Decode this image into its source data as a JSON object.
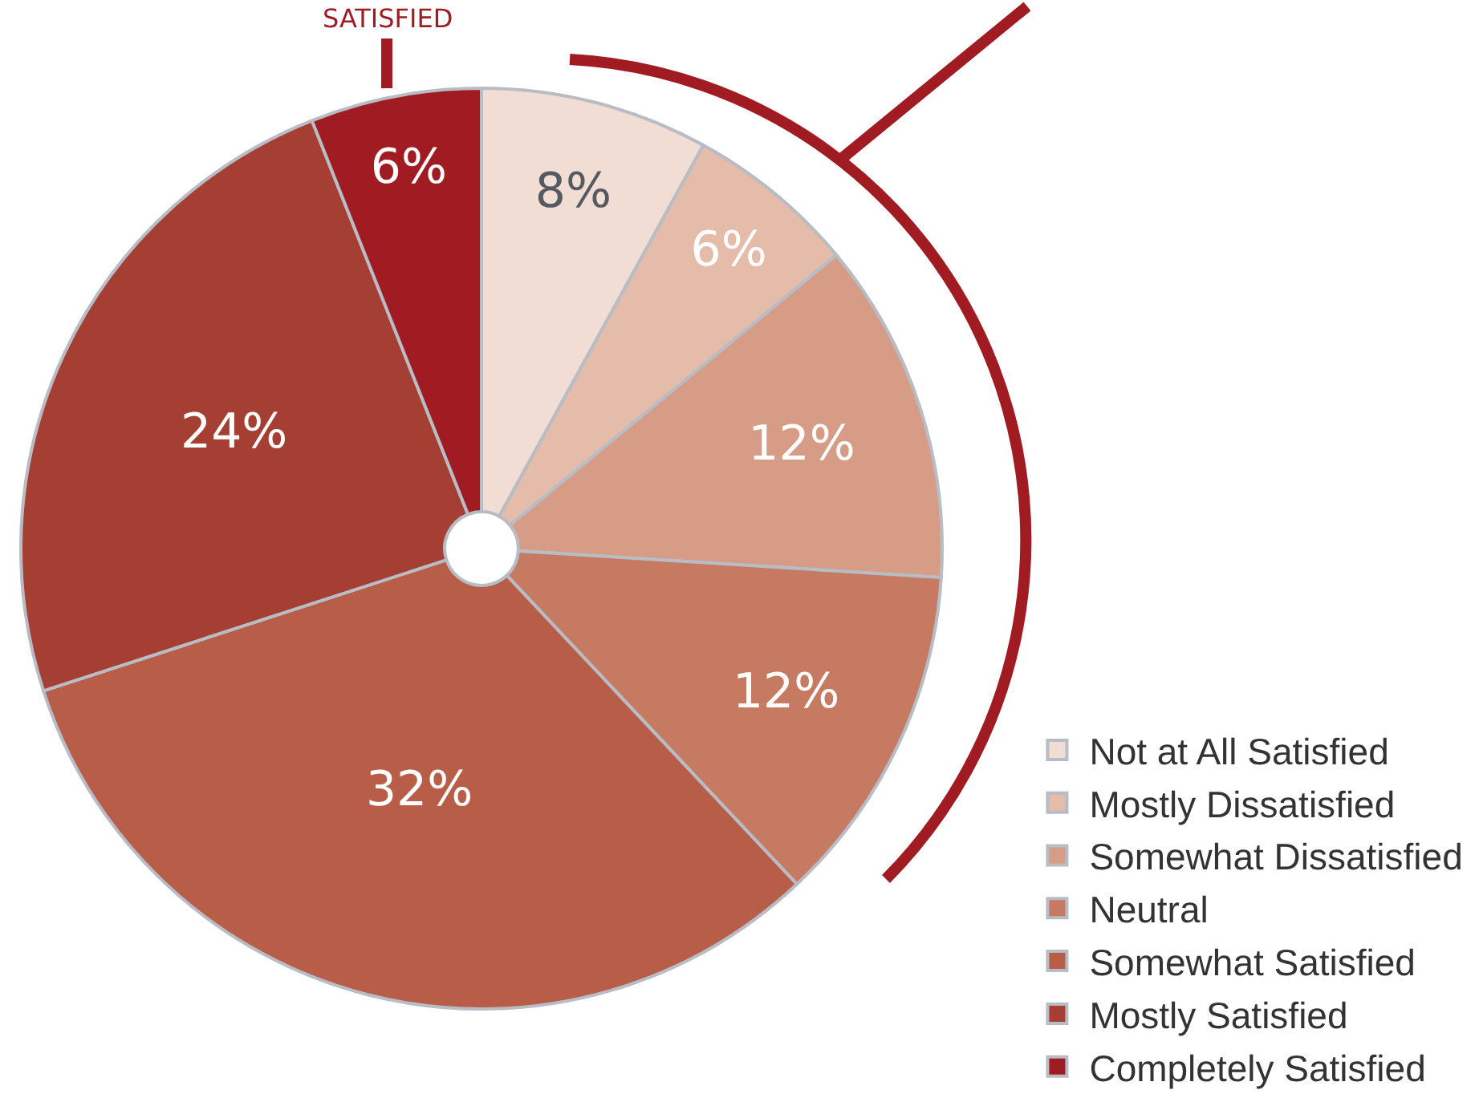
{
  "chart_data": {
    "type": "pie",
    "categories": [
      "Not at All Satisfied",
      "Mostly Dissatisfied",
      "Somewhat Dissatisfied",
      "Neutral",
      "Somewhat Satisfied",
      "Mostly Satisfied",
      "Completely Satisfied"
    ],
    "values": [
      8,
      6,
      12,
      12,
      32,
      24,
      6
    ],
    "value_labels": [
      "8%",
      "6%",
      "12%",
      "12%",
      "32%",
      "24%",
      "6%"
    ],
    "colors": [
      "#f2ddd5",
      "#e5bcaa",
      "#d79c86",
      "#c77a62",
      "#b85d48",
      "#a63f33",
      "#a01c22"
    ],
    "legend": "bottom right",
    "annotations": [
      "SATISFIED"
    ]
  }
}
